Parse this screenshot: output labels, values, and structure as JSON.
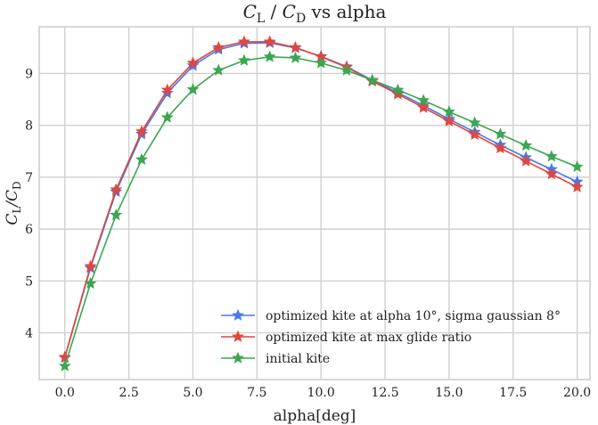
{
  "chart_data": {
    "type": "line",
    "title": "C_L / C_D vs alpha",
    "title_parts": [
      {
        "text": "C",
        "italic": true
      },
      {
        "text": "L",
        "sub": true
      },
      {
        "text": " / ",
        "italic": false
      },
      {
        "text": "C",
        "italic": true
      },
      {
        "text": "D",
        "sub": true
      },
      {
        "text": " vs alpha",
        "italic": false
      }
    ],
    "xlabel": "alpha[deg]",
    "ylabel": "C_L/C_D",
    "ylabel_parts": [
      {
        "text": "C",
        "italic": true
      },
      {
        "text": "L",
        "sub": true
      },
      {
        "text": "/",
        "italic": true
      },
      {
        "text": "C",
        "italic": true
      },
      {
        "text": "D",
        "sub": true
      }
    ],
    "xlim": [
      -1,
      20.5
    ],
    "ylim": [
      3.1,
      9.9
    ],
    "xticks": [
      0.0,
      2.5,
      5.0,
      7.5,
      10.0,
      12.5,
      15.0,
      17.5,
      20.0
    ],
    "xtick_labels": [
      "0.0",
      "2.5",
      "5.0",
      "7.5",
      "10.0",
      "12.5",
      "15.0",
      "17.5",
      "20.0"
    ],
    "yticks": [
      4,
      5,
      6,
      7,
      8,
      9
    ],
    "ytick_labels": [
      "4",
      "5",
      "6",
      "7",
      "8",
      "9"
    ],
    "grid": true,
    "legend_position": "lower-right",
    "marker": "star",
    "x": [
      0,
      1,
      2,
      3,
      4,
      5,
      6,
      7,
      8,
      9,
      10,
      11,
      12,
      13,
      14,
      15,
      16,
      17,
      18,
      19,
      20
    ],
    "series": [
      {
        "name": "optimized kite at alpha 10°, sigma gaussian 8°",
        "color": "#4a78e8",
        "values": [
          3.52,
          5.25,
          6.72,
          7.83,
          8.62,
          9.15,
          9.46,
          9.58,
          9.59,
          9.49,
          9.33,
          9.13,
          8.87,
          8.63,
          8.38,
          8.12,
          7.87,
          7.62,
          7.38,
          7.15,
          6.91
        ]
      },
      {
        "name": "optimized kite at max glide ratio",
        "color": "#e2463c",
        "values": [
          3.53,
          5.28,
          6.76,
          7.88,
          8.68,
          9.2,
          9.5,
          9.61,
          9.61,
          9.5,
          9.32,
          9.12,
          8.85,
          8.6,
          8.34,
          8.08,
          7.82,
          7.56,
          7.31,
          7.06,
          6.81
        ]
      },
      {
        "name": "initial kite",
        "color": "#3ca650",
        "values": [
          3.36,
          4.95,
          6.27,
          7.34,
          8.15,
          8.69,
          9.06,
          9.25,
          9.32,
          9.3,
          9.2,
          9.06,
          8.87,
          8.68,
          8.48,
          8.26,
          8.05,
          7.83,
          7.61,
          7.4,
          7.2
        ]
      }
    ]
  }
}
